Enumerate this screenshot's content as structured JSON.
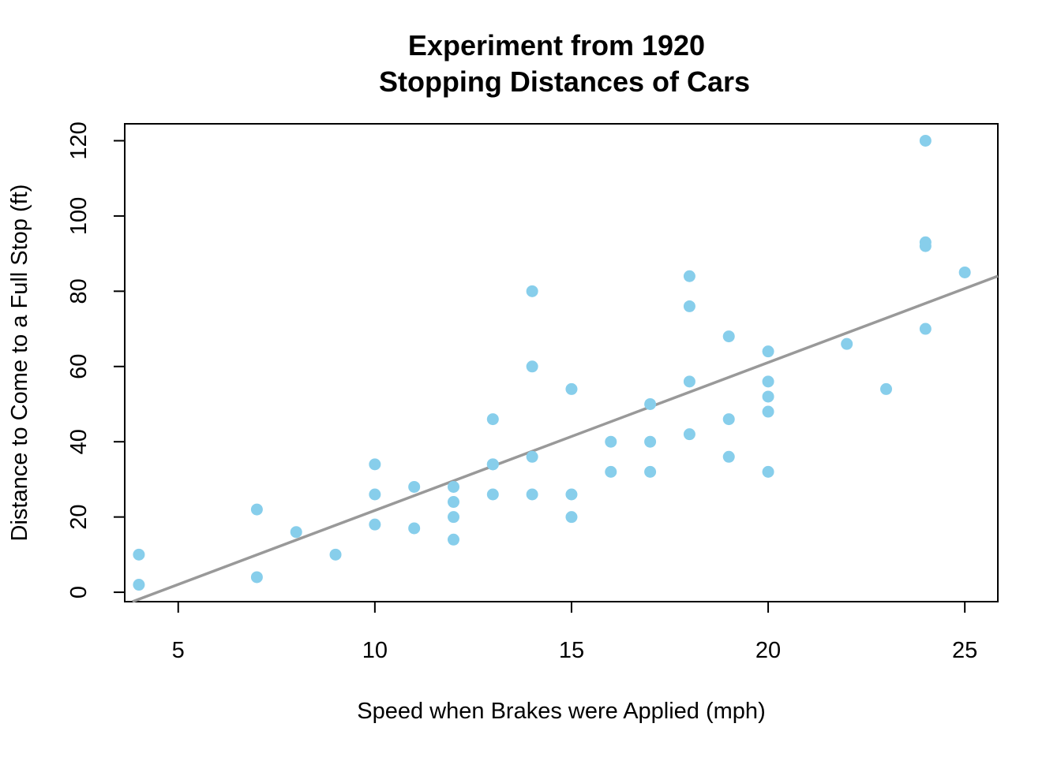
{
  "chart_data": {
    "type": "scatter",
    "title_line1": "Experiment from 1920",
    "title_line2": "Stopping Distances of Cars",
    "xlabel": "Speed when Brakes were Applied (mph)",
    "ylabel": "Distance to Come to a Full Stop (ft)",
    "xlim": [
      3.64,
      25.84
    ],
    "ylim": [
      -2.5,
      124.5
    ],
    "xticks": [
      "5",
      "10",
      "15",
      "20",
      "25"
    ],
    "yticks": [
      "0",
      "20",
      "40",
      "60",
      "80",
      "100",
      "120"
    ],
    "grid": false,
    "legend": "none",
    "point_color": "#87CEEB",
    "line_color": "#999999",
    "points": [
      {
        "x": 4,
        "y": 2
      },
      {
        "x": 4,
        "y": 10
      },
      {
        "x": 7,
        "y": 4
      },
      {
        "x": 7,
        "y": 22
      },
      {
        "x": 8,
        "y": 16
      },
      {
        "x": 9,
        "y": 10
      },
      {
        "x": 10,
        "y": 18
      },
      {
        "x": 10,
        "y": 26
      },
      {
        "x": 10,
        "y": 34
      },
      {
        "x": 11,
        "y": 17
      },
      {
        "x": 11,
        "y": 28
      },
      {
        "x": 12,
        "y": 14
      },
      {
        "x": 12,
        "y": 20
      },
      {
        "x": 12,
        "y": 24
      },
      {
        "x": 12,
        "y": 28
      },
      {
        "x": 13,
        "y": 26
      },
      {
        "x": 13,
        "y": 34
      },
      {
        "x": 13,
        "y": 34
      },
      {
        "x": 13,
        "y": 46
      },
      {
        "x": 14,
        "y": 26
      },
      {
        "x": 14,
        "y": 36
      },
      {
        "x": 14,
        "y": 60
      },
      {
        "x": 14,
        "y": 80
      },
      {
        "x": 15,
        "y": 20
      },
      {
        "x": 15,
        "y": 26
      },
      {
        "x": 15,
        "y": 54
      },
      {
        "x": 16,
        "y": 32
      },
      {
        "x": 16,
        "y": 40
      },
      {
        "x": 17,
        "y": 32
      },
      {
        "x": 17,
        "y": 40
      },
      {
        "x": 17,
        "y": 50
      },
      {
        "x": 18,
        "y": 42
      },
      {
        "x": 18,
        "y": 56
      },
      {
        "x": 18,
        "y": 76
      },
      {
        "x": 18,
        "y": 84
      },
      {
        "x": 19,
        "y": 36
      },
      {
        "x": 19,
        "y": 46
      },
      {
        "x": 19,
        "y": 68
      },
      {
        "x": 20,
        "y": 32
      },
      {
        "x": 20,
        "y": 48
      },
      {
        "x": 20,
        "y": 52
      },
      {
        "x": 20,
        "y": 56
      },
      {
        "x": 20,
        "y": 64
      },
      {
        "x": 22,
        "y": 66
      },
      {
        "x": 23,
        "y": 54
      },
      {
        "x": 24,
        "y": 70
      },
      {
        "x": 24,
        "y": 92
      },
      {
        "x": 24,
        "y": 93
      },
      {
        "x": 24,
        "y": 120
      },
      {
        "x": 25,
        "y": 85
      }
    ],
    "regression_line": {
      "intercept": -17.579,
      "slope": 3.932
    }
  }
}
